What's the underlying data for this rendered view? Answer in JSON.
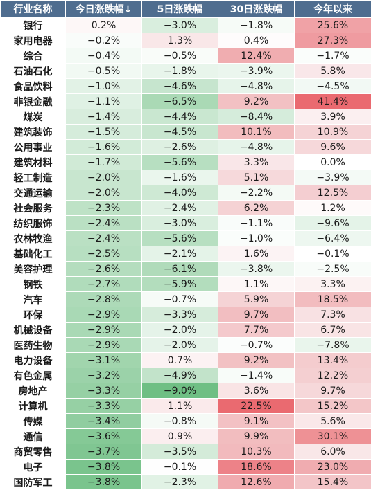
{
  "table": {
    "headers": [
      "行业名称",
      "今日涨跌幅↓",
      "5日涨跌幅",
      "30日涨跌幅",
      "今年以来"
    ],
    "rows": [
      [
        "银行",
        "0.2%",
        "−3.0%",
        "−1.8%",
        "25.6%"
      ],
      [
        "家用电器",
        "−0.2%",
        "1.3%",
        "0.4%",
        "27.3%"
      ],
      [
        "综合",
        "−0.4%",
        "−0.5%",
        "12.4%",
        "−1.7%"
      ],
      [
        "石油石化",
        "−0.5%",
        "−1.8%",
        "−3.9%",
        "5.8%"
      ],
      [
        "食品饮料",
        "−1.0%",
        "−4.6%",
        "−4.8%",
        "−4.5%"
      ],
      [
        "非银金融",
        "−1.1%",
        "−6.5%",
        "9.2%",
        "41.4%"
      ],
      [
        "煤炭",
        "−1.4%",
        "−4.4%",
        "−8.4%",
        "3.9%"
      ],
      [
        "建筑装饰",
        "−1.5%",
        "−4.5%",
        "10.1%",
        "10.9%"
      ],
      [
        "公用事业",
        "−1.6%",
        "−2.6%",
        "−4.8%",
        "9.6%"
      ],
      [
        "建筑材料",
        "−1.7%",
        "−5.6%",
        "3.3%",
        "0.0%"
      ],
      [
        "轻工制造",
        "−2.0%",
        "−1.6%",
        "5.1%",
        "−3.9%"
      ],
      [
        "交通运输",
        "−2.0%",
        "−4.0%",
        "−2.2%",
        "12.5%"
      ],
      [
        "社会服务",
        "−2.3%",
        "−2.4%",
        "6.2%",
        "1.2%"
      ],
      [
        "纺织服饰",
        "−2.4%",
        "−3.0%",
        "−1.1%",
        "−9.6%"
      ],
      [
        "农林牧渔",
        "−2.4%",
        "−5.6%",
        "−1.0%",
        "−6.4%"
      ],
      [
        "基础化工",
        "−2.5%",
        "−2.1%",
        "1.6%",
        "−0.1%"
      ],
      [
        "美容护理",
        "−2.6%",
        "−6.1%",
        "−3.8%",
        "−2.5%"
      ],
      [
        "钢铁",
        "−2.7%",
        "−5.9%",
        "1.1%",
        "3.3%"
      ],
      [
        "汽车",
        "−2.8%",
        "−0.7%",
        "5.9%",
        "18.5%"
      ],
      [
        "环保",
        "−2.9%",
        "−3.3%",
        "9.7%",
        "7.3%"
      ],
      [
        "机械设备",
        "−2.9%",
        "−2.0%",
        "7.7%",
        "6.7%"
      ],
      [
        "医药生物",
        "−2.9%",
        "−2.0%",
        "−0.7%",
        "−7.8%"
      ],
      [
        "电力设备",
        "−3.1%",
        "0.7%",
        "9.2%",
        "13.4%"
      ],
      [
        "有色金属",
        "−3.2%",
        "−4.9%",
        "−1.4%",
        "12.2%"
      ],
      [
        "房地产",
        "−3.3%",
        "−9.0%",
        "3.6%",
        "9.7%"
      ],
      [
        "计算机",
        "−3.3%",
        "1.1%",
        "22.5%",
        "15.2%"
      ],
      [
        "传媒",
        "−3.4%",
        "−0.8%",
        "9.1%",
        "5.6%"
      ],
      [
        "通信",
        "−3.6%",
        "0.9%",
        "9.9%",
        "30.1%"
      ],
      [
        "商贸零售",
        "−3.7%",
        "−3.5%",
        "10.3%",
        "6.0%"
      ],
      [
        "电子",
        "−3.8%",
        "−0.1%",
        "18.6%",
        "23.0%"
      ],
      [
        "国防军工",
        "−3.8%",
        "−2.3%",
        "12.6%",
        "15.4%"
      ]
    ]
  },
  "colors": {
    "header_bg": "#4f6d8f",
    "positive_scale": [
      "#ffffff",
      "#f5d5d7",
      "#f1b5b8",
      "#ee8d92",
      "#ea6a70"
    ],
    "negative_scale": [
      "#ffffff",
      "#e2f2e6",
      "#c8e6cf",
      "#a6d7b2",
      "#6fbf84"
    ]
  }
}
